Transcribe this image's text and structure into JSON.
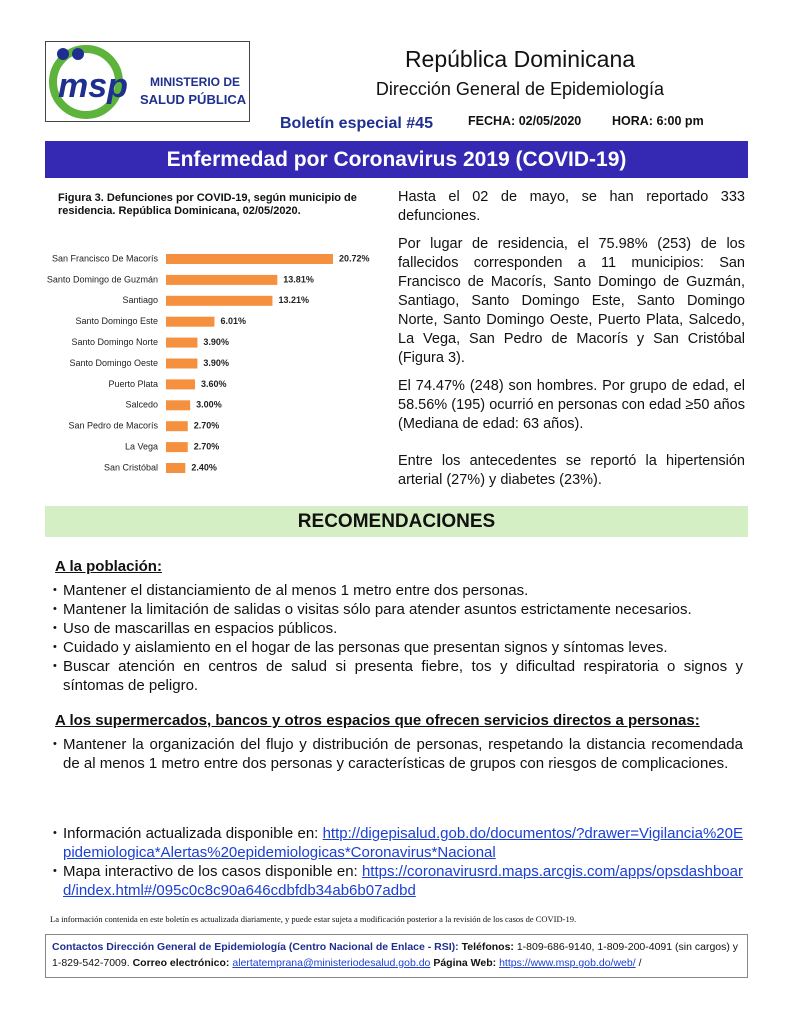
{
  "header": {
    "logo_mark": "msp",
    "logo_line1": "MINISTERIO DE",
    "logo_line2": "SALUD PÚBLICA",
    "country": "República Dominicana",
    "department": "Dirección General de Epidemiología",
    "bulletin": "Boletín especial #45",
    "date": "FECHA: 02/05/2020",
    "time": "HORA: 6:00 pm"
  },
  "banner": "Enfermedad por Coronavirus 2019 (COVID-19)",
  "chart_data": {
    "type": "bar",
    "orientation": "horizontal",
    "title": "Figura 3. Defunciones por COVID-19, según municipio de residencia. República Dominicana, 02/05/2020.",
    "categories": [
      "San Francisco De Macorís",
      "Santo Domingo de Guzmán",
      "Santiago",
      "Santo Domingo Este",
      "Santo Domingo Norte",
      "Santo Domingo Oeste",
      "Puerto Plata",
      "Salcedo",
      "San Pedro de Macorís",
      "La Vega",
      "San Cristóbal"
    ],
    "values": [
      20.72,
      13.81,
      13.21,
      6.01,
      3.9,
      3.9,
      3.6,
      3.0,
      2.7,
      2.7,
      2.4
    ],
    "value_labels": [
      "20.72%",
      "13.81%",
      "13.21%",
      "6.01%",
      "3.90%",
      "3.90%",
      "3.60%",
      "3.00%",
      "2.70%",
      "2.70%",
      "2.40%"
    ],
    "color": "#f5913e"
  },
  "summary": [
    "Hasta el 02 de mayo, se han reportado 333 defunciones.",
    "Por lugar de residencia, el 75.98% (253) de los fallecidos corresponden a 11 municipios: San Francisco de Macorís, Santo Domingo de Guzmán, Santiago, Santo Domingo Este, Santo Domingo Norte, Santo Domingo Oeste, Puerto Plata, Salcedo, La Vega, San Pedro de Macorís y San Cristóbal (Figura 3).",
    "El 74.47% (248) son hombres. Por grupo de edad, el 58.56% (195) ocurrió en personas con edad ≥50 años (Mediana de edad: 63 años).",
    "Entre los antecedentes se reportó la hipertensión arterial (27%) y diabetes (23%)."
  ],
  "recommendations": {
    "title": "RECOMENDACIONES",
    "sections": [
      {
        "heading": "A la población:",
        "items": [
          "Mantener el distanciamiento de al menos 1 metro entre dos personas.",
          "Mantener la limitación de salidas o visitas sólo para atender asuntos estrictamente necesarios.",
          "Uso de mascarillas en espacios públicos.",
          "Cuidado y aislamiento en el hogar de las personas que presentan signos y síntomas leves.",
          "Buscar atención en centros de salud si presenta fiebre, tos y dificultad respiratoria o signos y síntomas de peligro."
        ]
      },
      {
        "heading": "A los supermercados, bancos y otros espacios que ofrecen servicios directos a personas:",
        "items": [
          "Mantener la organización del flujo y distribución de personas, respetando la distancia recomendada  de al menos 1 metro entre dos personas y características de grupos con riesgos de complicaciones."
        ]
      }
    ]
  },
  "links": [
    {
      "text": "Información actualizada disponible en:",
      "url": "http://digepisalud.gob.do/documentos/?drawer=Vigilancia%20Epidemiologica*Alertas%20epidemiologicas*Coronavirus*Nacional"
    },
    {
      "text": "Mapa interactivo de los casos disponible en:",
      "url": "https://coronavirusrd.maps.arcgis.com/apps/opsdashboard/index.html#/095c0c8c90a646cdbfdb34ab6b07adbd"
    }
  ],
  "footnote": "La información contenida en este boletín es actualizada diariamente, y puede estar sujeta a modificación posterior a la revisión de los casos de COVID-19.",
  "contacts": {
    "label": "Contactos Dirección General de Epidemiología (Centro Nacional de Enlace - RSI):",
    "phones_label": "Teléfonos:",
    "phones": "1-809-686-9140, 1-809-200-4091 (sin cargos) y 1-829-542-7009.",
    "email_label": "Correo electrónico:",
    "email": "alertatemprana@ministeriodesalud.gob.do",
    "web_label": "Página Web:",
    "web": "https://www.msp.gob.do/web/",
    "end": "/"
  }
}
